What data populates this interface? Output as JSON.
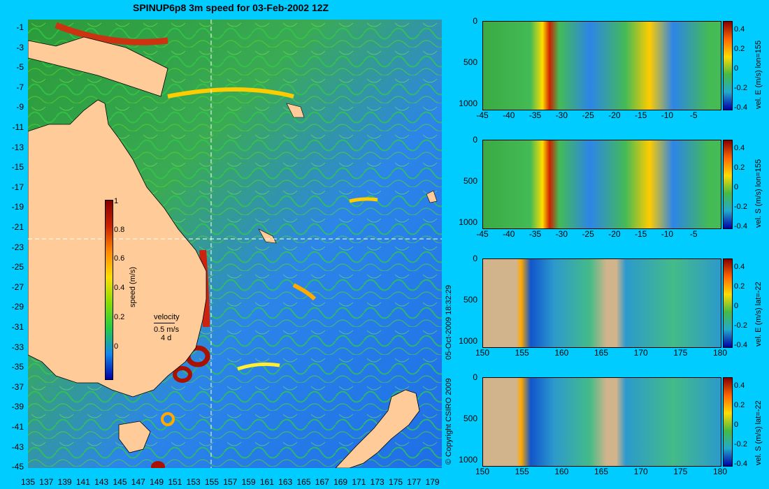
{
  "title": "SPINUP6p8 3m speed for 03-Feb-2002 12Z",
  "map": {
    "lat_labels": [
      "-1",
      "-3",
      "-5",
      "-7",
      "-9",
      "-11",
      "-13",
      "-15",
      "-17",
      "-19",
      "-21",
      "-23",
      "-25",
      "-27",
      "-29",
      "-31",
      "-33",
      "-35",
      "-37",
      "-39",
      "-41",
      "-43",
      "-45"
    ],
    "lon_labels": [
      "135",
      "137",
      "139",
      "141",
      "143",
      "145",
      "147",
      "149",
      "151",
      "153",
      "155",
      "157",
      "159",
      "161",
      "163",
      "165",
      "167",
      "169",
      "171",
      "173",
      "175",
      "177",
      "179"
    ],
    "colorbar": {
      "label": "speed (m/s)",
      "ticks": [
        "1",
        "0.8",
        "0.6",
        "0.4",
        "0.2",
        "0"
      ]
    },
    "velocity_key": {
      "title": "velocity",
      "speed": "0.5 m/s",
      "time": "4 d"
    },
    "copyright": "© Copyright CSIRO 2009",
    "timestamp": "05-Oct-2009 18:32:29",
    "colors": {
      "background": "#00ccff",
      "land": "#ffcc99",
      "ocean_low": "#1e6ee6",
      "ocean_mid": "#22bb44",
      "ocean_high": "#c0301c"
    }
  },
  "panels": [
    {
      "title": "vel. E (m/s) lon=155",
      "x_labels": [
        "-45",
        "-40",
        "-35",
        "-30",
        "-25",
        "-20",
        "-15",
        "-10",
        "-5"
      ],
      "y_labels": [
        "0",
        "500",
        "1000"
      ],
      "cb_ticks": [
        "0.4",
        "0.2",
        "0",
        "-0.2",
        "-0.4"
      ]
    },
    {
      "title": "vel. S (m/s) lon=155",
      "x_labels": [
        "-45",
        "-40",
        "-35",
        "-30",
        "-25",
        "-20",
        "-15",
        "-10",
        "-5"
      ],
      "y_labels": [
        "0",
        "500",
        "1000"
      ],
      "cb_ticks": [
        "0.4",
        "0.2",
        "0",
        "-0.2",
        "-0.4"
      ]
    },
    {
      "title": "vel. E (m/s) lat=-22",
      "x_labels": [
        "150",
        "155",
        "160",
        "165",
        "170",
        "175",
        "180"
      ],
      "y_labels": [
        "0",
        "500",
        "1000"
      ],
      "cb_ticks": [
        "0.4",
        "0.2",
        "0",
        "-0.2",
        "-0.4"
      ]
    },
    {
      "title": "vel. S (m/s) lat=-22",
      "x_labels": [
        "150",
        "155",
        "160",
        "165",
        "170",
        "175",
        "180"
      ],
      "y_labels": [
        "0",
        "500",
        "1000"
      ],
      "cb_ticks": [
        "0.4",
        "0.2",
        "0",
        "-0.2",
        "-0.4"
      ]
    }
  ]
}
